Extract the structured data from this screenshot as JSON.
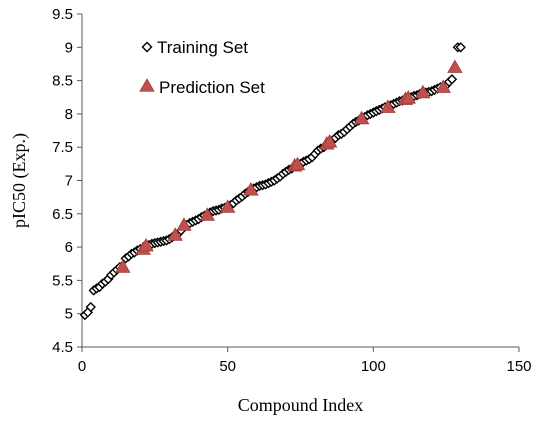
{
  "chart_data": {
    "type": "scatter",
    "title": "",
    "xlabel": "Compound Index",
    "ylabel": "pIC50 (Exp.)",
    "xlim": [
      0,
      150
    ],
    "ylim": [
      4.5,
      9.5
    ],
    "x_ticks": [
      0,
      50,
      100,
      150
    ],
    "y_ticks": [
      4.5,
      5,
      5.5,
      6,
      6.5,
      7,
      7.5,
      8,
      8.5,
      9,
      9.5
    ],
    "x_tick_labels": [
      "0",
      "50",
      "100",
      "150"
    ],
    "y_tick_labels": [
      "4.5",
      "5",
      "5.5",
      "6",
      "6.5",
      "7",
      "7.5",
      "8",
      "8.5",
      "9",
      "9.5"
    ],
    "grid": false,
    "legend_position": "top-left",
    "series": [
      {
        "name": "Training Set",
        "marker": "diamond-open",
        "color": "#000000",
        "points": [
          [
            1,
            4.98
          ],
          [
            2,
            5.02
          ],
          [
            3,
            5.1
          ],
          [
            4,
            5.35
          ],
          [
            5,
            5.38
          ],
          [
            6,
            5.4
          ],
          [
            7,
            5.45
          ],
          [
            8,
            5.48
          ],
          [
            9,
            5.52
          ],
          [
            10,
            5.58
          ],
          [
            11,
            5.62
          ],
          [
            12,
            5.66
          ],
          [
            13,
            5.7
          ],
          [
            15,
            5.83
          ],
          [
            16,
            5.86
          ],
          [
            17,
            5.9
          ],
          [
            18,
            5.92
          ],
          [
            19,
            5.95
          ],
          [
            20,
            5.97
          ],
          [
            23,
            6.03
          ],
          [
            24,
            6.05
          ],
          [
            25,
            6.06
          ],
          [
            26,
            6.07
          ],
          [
            27,
            6.08
          ],
          [
            28,
            6.09
          ],
          [
            29,
            6.1
          ],
          [
            30,
            6.12
          ],
          [
            31,
            6.15
          ],
          [
            33,
            6.2
          ],
          [
            34,
            6.25
          ],
          [
            36,
            6.33
          ],
          [
            37,
            6.36
          ],
          [
            38,
            6.38
          ],
          [
            39,
            6.4
          ],
          [
            40,
            6.42
          ],
          [
            41,
            6.45
          ],
          [
            42,
            6.47
          ],
          [
            44,
            6.52
          ],
          [
            45,
            6.54
          ],
          [
            46,
            6.55
          ],
          [
            47,
            6.56
          ],
          [
            48,
            6.58
          ],
          [
            49,
            6.59
          ],
          [
            51,
            6.63
          ],
          [
            52,
            6.66
          ],
          [
            53,
            6.7
          ],
          [
            54,
            6.73
          ],
          [
            55,
            6.76
          ],
          [
            56,
            6.8
          ],
          [
            57,
            6.83
          ],
          [
            59,
            6.88
          ],
          [
            60,
            6.9
          ],
          [
            61,
            6.92
          ],
          [
            62,
            6.93
          ],
          [
            63,
            6.94
          ],
          [
            64,
            6.96
          ],
          [
            65,
            6.98
          ],
          [
            66,
            7.0
          ],
          [
            67,
            7.03
          ],
          [
            68,
            7.06
          ],
          [
            69,
            7.1
          ],
          [
            70,
            7.13
          ],
          [
            71,
            7.16
          ],
          [
            72,
            7.18
          ],
          [
            75,
            7.25
          ],
          [
            76,
            7.28
          ],
          [
            77,
            7.3
          ],
          [
            78,
            7.32
          ],
          [
            79,
            7.35
          ],
          [
            80,
            7.4
          ],
          [
            81,
            7.45
          ],
          [
            82,
            7.48
          ],
          [
            83,
            7.5
          ],
          [
            86,
            7.6
          ],
          [
            87,
            7.64
          ],
          [
            88,
            7.68
          ],
          [
            89,
            7.7
          ],
          [
            90,
            7.73
          ],
          [
            91,
            7.77
          ],
          [
            92,
            7.81
          ],
          [
            93,
            7.85
          ],
          [
            94,
            7.88
          ],
          [
            95,
            7.9
          ],
          [
            97,
            7.95
          ],
          [
            98,
            7.98
          ],
          [
            99,
            8.0
          ],
          [
            100,
            8.02
          ],
          [
            101,
            8.04
          ],
          [
            102,
            8.06
          ],
          [
            103,
            8.08
          ],
          [
            104,
            8.1
          ],
          [
            106,
            8.13
          ],
          [
            107,
            8.15
          ],
          [
            108,
            8.17
          ],
          [
            109,
            8.19
          ],
          [
            110,
            8.2
          ],
          [
            113,
            8.25
          ],
          [
            114,
            8.27
          ],
          [
            115,
            8.28
          ],
          [
            116,
            8.3
          ],
          [
            118,
            8.32
          ],
          [
            119,
            8.33
          ],
          [
            120,
            8.34
          ],
          [
            121,
            8.36
          ],
          [
            122,
            8.38
          ],
          [
            123,
            8.4
          ],
          [
            125,
            8.43
          ],
          [
            126,
            8.48
          ],
          [
            127,
            8.52
          ],
          [
            129,
            9.0
          ],
          [
            130,
            9.0
          ]
        ]
      },
      {
        "name": "Prediction Set",
        "marker": "triangle-filled",
        "color": "#c0504d",
        "points": [
          [
            14,
            5.7
          ],
          [
            21,
            5.97
          ],
          [
            22,
            6.02
          ],
          [
            32,
            6.18
          ],
          [
            35,
            6.33
          ],
          [
            43,
            6.48
          ],
          [
            50,
            6.6
          ],
          [
            58,
            6.86
          ],
          [
            73,
            7.22
          ],
          [
            74,
            7.24
          ],
          [
            84,
            7.55
          ],
          [
            85,
            7.58
          ],
          [
            96,
            7.93
          ],
          [
            105,
            8.1
          ],
          [
            111,
            8.22
          ],
          [
            112,
            8.24
          ],
          [
            117,
            8.32
          ],
          [
            124,
            8.4
          ],
          [
            128,
            8.7
          ]
        ]
      }
    ]
  }
}
